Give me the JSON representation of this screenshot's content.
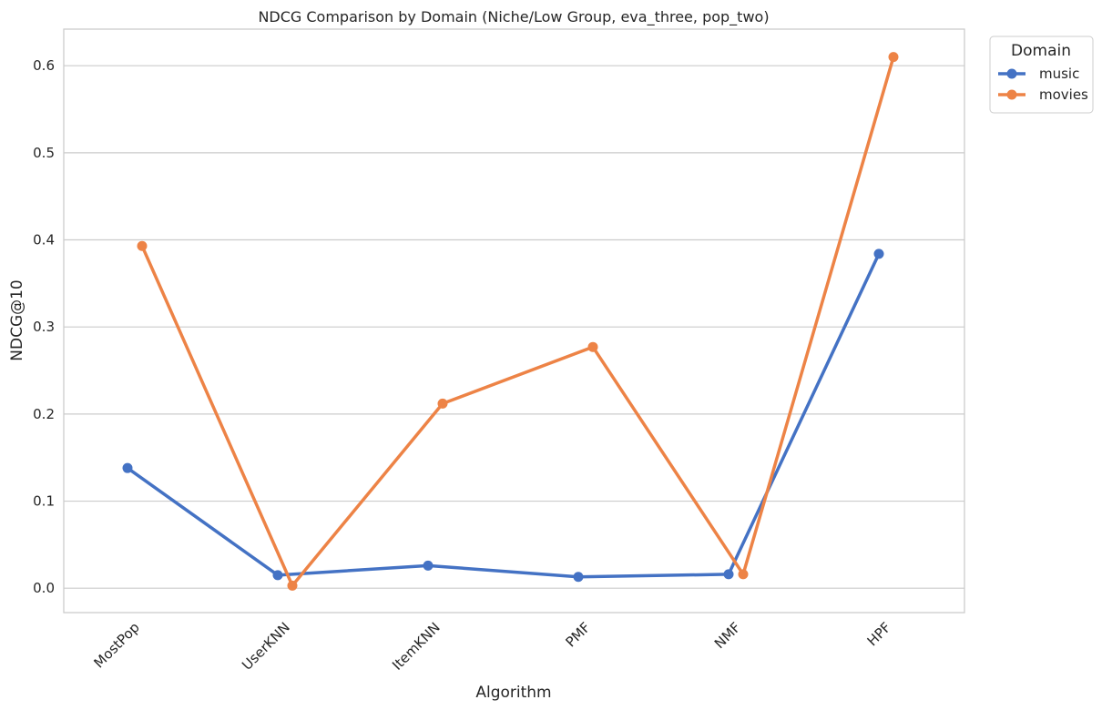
{
  "chart_data": {
    "type": "line",
    "title": "NDCG Comparison by Domain (Niche/Low Group, eva_three, pop_two)",
    "xlabel": "Algorithm",
    "ylabel": "NDCG@10",
    "categories": [
      "MostPop",
      "UserKNN",
      "ItemKNN",
      "PMF",
      "NMF",
      "HPF"
    ],
    "ylim": [
      -0.028,
      0.642
    ],
    "yticks": [
      "0.0",
      "0.1",
      "0.2",
      "0.3",
      "0.4",
      "0.5",
      "0.6"
    ],
    "grid": "horizontal",
    "legend": {
      "title": "Domain",
      "placement": "outside-top-right"
    },
    "series": [
      {
        "name": "music",
        "color": "#4472c4",
        "values": [
          0.138,
          0.015,
          0.026,
          0.013,
          0.016,
          0.384
        ]
      },
      {
        "name": "movies",
        "color": "#ed8346",
        "values": [
          0.393,
          0.003,
          0.212,
          0.277,
          0.016,
          0.61
        ]
      }
    ]
  }
}
